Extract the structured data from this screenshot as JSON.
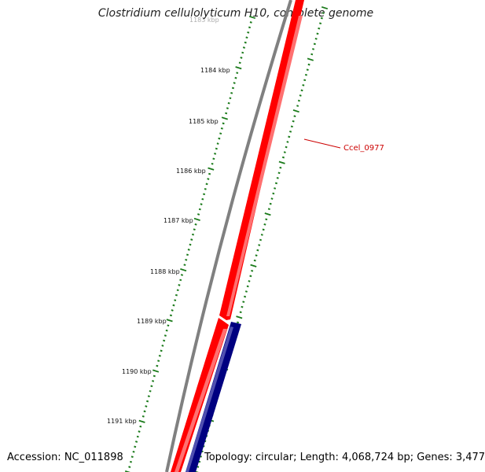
{
  "title": "Clostridium cellulolyticum H10, complete genome",
  "footer": {
    "accession": "Accession: NC_011898",
    "summary": "Topology: circular; Length: 4,068,724 bp; Genes: 3,477"
  },
  "ticks": [
    {
      "label": "1183 kbp"
    },
    {
      "label": "1184 kbp"
    },
    {
      "label": "1185 kbp"
    },
    {
      "label": "1186 kbp"
    },
    {
      "label": "1187 kbp"
    },
    {
      "label": "1188 kbp"
    },
    {
      "label": "1189 kbp"
    },
    {
      "label": "1190 kbp"
    },
    {
      "label": "1191 kbp"
    }
  ],
  "features": [
    {
      "name": "Ccel_0977",
      "strand": "forward",
      "color": "#ff0000"
    },
    {
      "name": "",
      "strand": "forward",
      "color": "#ff0000"
    },
    {
      "name": "",
      "strand": "reverse",
      "color": "#000080"
    }
  ],
  "colors": {
    "backbone": "#808080",
    "tick": "#1a7a1a",
    "forward_gene": "#ff0000",
    "reverse_gene": "#000080",
    "gene_label": "#cc0000"
  }
}
